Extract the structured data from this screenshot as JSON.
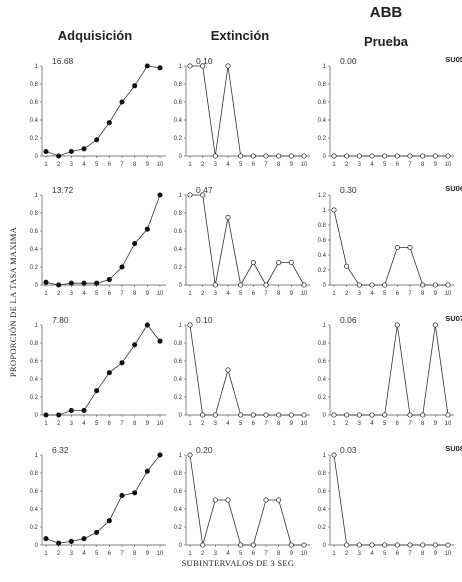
{
  "header": {
    "group": "ABB",
    "columns": [
      "Adquisición",
      "Extinción",
      "Prueba"
    ]
  },
  "axes": {
    "ylabel": "PROPORCIÓN DE LA TASA MAXIMA",
    "xlabel": "SUBINTERVALOS DE 3 SEG"
  },
  "styles": {
    "adquisicion_marker": "filled",
    "extincion_marker": "open",
    "prueba_marker": "open",
    "line_color": "#333333"
  },
  "chart_data": [
    {
      "type": "line",
      "subject": "",
      "phase": "Adquisición",
      "rate_label": "16.68",
      "x": [
        1,
        2,
        3,
        4,
        5,
        6,
        7,
        8,
        9,
        10
      ],
      "yticks": [
        "0",
        "0.2",
        "0.4",
        "0.6",
        "0.8",
        "1"
      ],
      "ylim": [
        0,
        1
      ],
      "values": [
        0.05,
        0.0,
        0.05,
        0.08,
        0.18,
        0.37,
        0.6,
        0.78,
        1.0,
        0.98
      ]
    },
    {
      "type": "line",
      "subject": "",
      "phase": "Extinción",
      "rate_label": "0.10",
      "x": [
        1,
        2,
        3,
        4,
        5,
        6,
        7,
        8,
        9,
        10
      ],
      "yticks": [
        "0",
        "0.2",
        "0.4",
        "0.6",
        "0.8",
        "1"
      ],
      "ylim": [
        0,
        1
      ],
      "values": [
        1.0,
        1.0,
        0,
        1.0,
        0,
        0,
        0,
        0,
        0,
        0
      ]
    },
    {
      "type": "line",
      "subject": "SU05",
      "phase": "Prueba",
      "rate_label": "0.00",
      "x": [
        1,
        2,
        3,
        4,
        5,
        6,
        7,
        8,
        9,
        10
      ],
      "yticks": [
        "0",
        "0.2",
        "0.4",
        "0.6",
        "0.8",
        "1"
      ],
      "ylim": [
        0,
        1
      ],
      "values": [
        0,
        0,
        0,
        0,
        0,
        0,
        0,
        0,
        0,
        0
      ]
    },
    {
      "type": "line",
      "subject": "",
      "phase": "Adquisición",
      "rate_label": "13.72",
      "x": [
        1,
        2,
        3,
        4,
        5,
        6,
        7,
        8,
        9,
        10
      ],
      "yticks": [
        "0",
        "0.2",
        "0.4",
        "0.6",
        "0.8",
        "1"
      ],
      "ylim": [
        0,
        1
      ],
      "values": [
        0.03,
        0.0,
        0.02,
        0.02,
        0.02,
        0.06,
        0.2,
        0.46,
        0.62,
        1.0
      ]
    },
    {
      "type": "line",
      "subject": "",
      "phase": "Extinción",
      "rate_label": "0.47",
      "x": [
        1,
        2,
        3,
        4,
        5,
        6,
        7,
        8,
        9,
        10
      ],
      "yticks": [
        "0",
        "0.2",
        "0.4",
        "0.6",
        "0.8",
        "1"
      ],
      "ylim": [
        0,
        1
      ],
      "values": [
        1.0,
        1.0,
        0,
        0.75,
        0,
        0.25,
        0,
        0.25,
        0.25,
        0
      ]
    },
    {
      "type": "line",
      "subject": "SU06",
      "phase": "Prueba",
      "rate_label": "0.30",
      "x": [
        1,
        2,
        3,
        4,
        5,
        6,
        7,
        8,
        9,
        10
      ],
      "yticks": [
        "0",
        "0.2",
        "0.4",
        "0.6",
        "0.8",
        "1",
        "1.2"
      ],
      "ylim": [
        0,
        1.2
      ],
      "values": [
        1.0,
        0.25,
        0,
        0,
        0,
        0.5,
        0.5,
        0,
        0,
        0
      ]
    },
    {
      "type": "line",
      "subject": "",
      "phase": "Adquisición",
      "rate_label": "7.80",
      "x": [
        1,
        2,
        3,
        4,
        5,
        6,
        7,
        8,
        9,
        10
      ],
      "yticks": [
        "0",
        "0.2",
        "0.4",
        "0.6",
        "0.8",
        "1"
      ],
      "ylim": [
        0,
        1
      ],
      "values": [
        0.0,
        0.0,
        0.05,
        0.05,
        0.27,
        0.47,
        0.58,
        0.78,
        1.0,
        0.82
      ]
    },
    {
      "type": "line",
      "subject": "",
      "phase": "Extinción",
      "rate_label": "0.10",
      "x": [
        1,
        2,
        3,
        4,
        5,
        6,
        7,
        8,
        9,
        10
      ],
      "yticks": [
        "0",
        "0.2",
        "0.4",
        "0.6",
        "0.8",
        "1"
      ],
      "ylim": [
        0,
        1
      ],
      "values": [
        1.0,
        0,
        0,
        0.5,
        0,
        0,
        0,
        0,
        0,
        0
      ]
    },
    {
      "type": "line",
      "subject": "SU07",
      "phase": "Prueba",
      "rate_label": "0.06",
      "x": [
        1,
        2,
        3,
        4,
        5,
        6,
        7,
        8,
        9,
        10
      ],
      "yticks": [
        "0",
        "0.2",
        "0.4",
        "0.6",
        "0.8",
        "1"
      ],
      "ylim": [
        0,
        1
      ],
      "values": [
        0,
        0,
        0,
        0,
        0,
        1.0,
        0,
        0,
        1.0,
        0
      ]
    },
    {
      "type": "line",
      "subject": "",
      "phase": "Adquisición",
      "rate_label": "6.32",
      "x": [
        1,
        2,
        3,
        4,
        5,
        6,
        7,
        8,
        9,
        10
      ],
      "yticks": [
        "0",
        "0.2",
        "0.4",
        "0.6",
        "0.8",
        "1"
      ],
      "ylim": [
        0,
        1
      ],
      "values": [
        0.07,
        0.02,
        0.04,
        0.07,
        0.14,
        0.27,
        0.55,
        0.58,
        0.82,
        1.0
      ]
    },
    {
      "type": "line",
      "subject": "",
      "phase": "Extinción",
      "rate_label": "0.20",
      "x": [
        1,
        2,
        3,
        4,
        5,
        6,
        7,
        8,
        9,
        10
      ],
      "yticks": [
        "0",
        "0.2",
        "0.4",
        "0.6",
        "0.8",
        "1"
      ],
      "ylim": [
        0,
        1
      ],
      "values": [
        1.0,
        0,
        0.5,
        0.5,
        0,
        0,
        0.5,
        0.5,
        0,
        0
      ]
    },
    {
      "type": "line",
      "subject": "SU08",
      "phase": "Prueba",
      "rate_label": "0.03",
      "x": [
        1,
        2,
        3,
        4,
        5,
        6,
        7,
        8,
        9,
        10
      ],
      "yticks": [
        "0",
        "0.2",
        "0.4",
        "0.6",
        "0.8",
        "1"
      ],
      "ylim": [
        0,
        1
      ],
      "values": [
        1.0,
        0,
        0,
        0,
        0,
        0,
        0,
        0,
        0,
        0
      ]
    }
  ]
}
